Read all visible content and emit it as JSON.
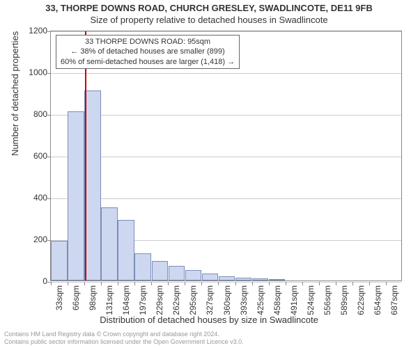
{
  "title_line1": "33, THORPE DOWNS ROAD, CHURCH GRESLEY, SWADLINCOTE, DE11 9FB",
  "title_line2": "Size of property relative to detached houses in Swadlincote",
  "ylabel": "Number of detached properties",
  "xlabel": "Distribution of detached houses by size in Swadlincote",
  "chart": {
    "type": "histogram",
    "ylim": [
      0,
      1200
    ],
    "yticks": [
      0,
      200,
      400,
      600,
      800,
      1000,
      1200
    ],
    "xtick_labels": [
      "33sqm",
      "66sqm",
      "98sqm",
      "131sqm",
      "164sqm",
      "197sqm",
      "229sqm",
      "262sqm",
      "295sqm",
      "327sqm",
      "360sqm",
      "393sqm",
      "425sqm",
      "458sqm",
      "491sqm",
      "524sqm",
      "556sqm",
      "589sqm",
      "622sqm",
      "654sqm",
      "687sqm"
    ],
    "n_bars": 21,
    "bar_values": [
      190,
      810,
      910,
      350,
      290,
      130,
      95,
      70,
      50,
      35,
      20,
      15,
      10,
      8,
      0,
      0,
      0,
      0,
      0,
      0,
      0
    ],
    "bar_fill": "#cdd7ef",
    "bar_border": "#7a8db8",
    "grid_color": "#cccccc",
    "background": "#ffffff",
    "marker_index": 2,
    "marker_fraction_within_bin": 0.05,
    "marker_color": "#cc0000",
    "title_fontsize": 13,
    "subtitle_fontsize": 13,
    "axis_label_fontsize": 13,
    "tick_fontsize": 12
  },
  "annotation": {
    "line1": "33 THORPE DOWNS ROAD: 95sqm",
    "line2": "← 38% of detached houses are smaller (899)",
    "line3": "60% of semi-detached houses are larger (1,418) →",
    "fontsize": 11,
    "border_color": "#666666",
    "background": "#ffffff"
  },
  "footer": {
    "line1": "Contains HM Land Registry data © Crown copyright and database right 2024.",
    "line2": "Contains public sector information licensed under the Open Government Licence v3.0.",
    "fontsize": 9,
    "color": "#999999"
  }
}
